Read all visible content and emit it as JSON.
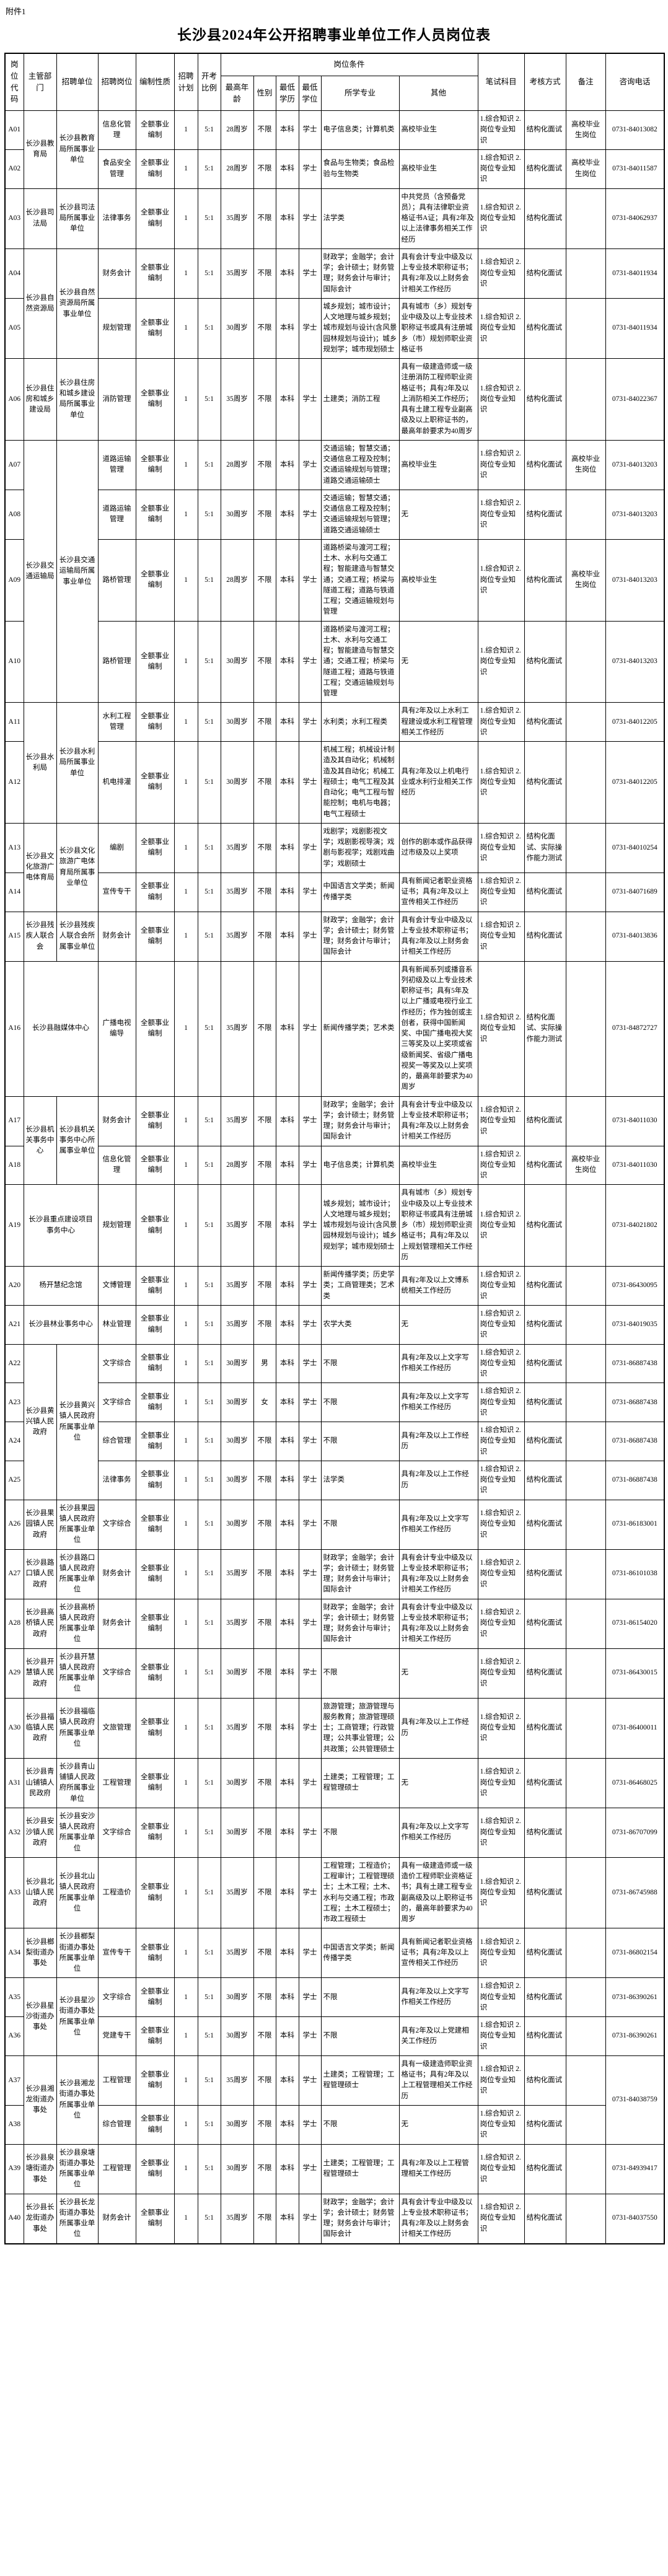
{
  "attachment_label": "附件1",
  "title": "长沙县2024年公开招聘事业单位工作人员岗位表",
  "header": {
    "code": "岗位代码",
    "dept": "主管部门",
    "unit": "招聘单位",
    "post": "招聘岗位",
    "nature": "编制性质",
    "plan": "招聘计划",
    "ratio": "开考比例",
    "conditions": "岗位条件",
    "age": "最高年龄",
    "gender": "性别",
    "edu": "最低学历",
    "degree": "最低学位",
    "major": "所学专业",
    "other": "其他",
    "exam": "笔试科目",
    "assess": "考核方式",
    "remark": "备注",
    "phone": "咨询电话"
  },
  "rows": [
    {
      "code": "A01",
      "org": {
        "dept": "长沙县教育局",
        "unit": "长沙县教育局所属事业单位",
        "rowspan": 2
      },
      "post": "信息化管理",
      "nature": "全额事业编制",
      "plan": "1",
      "ratio": "5:1",
      "age": "28周岁",
      "gender": "不限",
      "edu": "本科",
      "degree": "学士",
      "major": "电子信息类；计算机类",
      "other": "高校毕业生",
      "exam": "1.综合知识 2.岗位专业知识",
      "assess": "结构化面试",
      "remark": "高校毕业生岗位",
      "phone": "0731-84013082"
    },
    {
      "code": "A02",
      "org": null,
      "post": "食品安全管理",
      "nature": "全额事业编制",
      "plan": "1",
      "ratio": "5:1",
      "age": "28周岁",
      "gender": "不限",
      "edu": "本科",
      "degree": "学士",
      "major": "食品与生物类；食品检验与生物类",
      "other": "高校毕业生",
      "exam": "1.综合知识 2.岗位专业知识",
      "assess": "结构化面试",
      "remark": "高校毕业生岗位",
      "phone": "0731-84011587"
    },
    {
      "code": "A03",
      "org": {
        "dept": "长沙县司法局",
        "unit": "长沙县司法局所属事业单位",
        "rowspan": 1
      },
      "post": "法律事务",
      "nature": "全额事业编制",
      "plan": "1",
      "ratio": "5:1",
      "age": "35周岁",
      "gender": "不限",
      "edu": "本科",
      "degree": "学士",
      "major": "法学类",
      "other": "中共党员（含预备党员）；具有法律职业资格证书A证；具有2年及以上法律事务相关工作经历",
      "exam": "1.综合知识 2.岗位专业知识",
      "assess": "结构化面试",
      "remark": "",
      "phone": "0731-84062937"
    },
    {
      "code": "A04",
      "org": {
        "dept": "长沙县自然资源局",
        "unit": "长沙县自然资源局所属事业单位",
        "rowspan": 2
      },
      "post": "财务会计",
      "nature": "全额事业编制",
      "plan": "1",
      "ratio": "5:1",
      "age": "35周岁",
      "gender": "不限",
      "edu": "本科",
      "degree": "学士",
      "major": "财政学；金融学；会计学；会计硕士；财务管理；财务会计与审计；国际会计",
      "other": "具有会计专业中级及以上专业技术职称证书；具有2年及以上财务会计相关工作经历",
      "exam": "1.综合知识 2.岗位专业知识",
      "assess": "结构化面试",
      "remark": "",
      "phone": "0731-84011934"
    },
    {
      "code": "A05",
      "org": null,
      "post": "规划管理",
      "nature": "全额事业编制",
      "plan": "1",
      "ratio": "5:1",
      "age": "30周岁",
      "gender": "不限",
      "edu": "本科",
      "degree": "学士",
      "major": "城乡规划；城市设计；人文地理与城乡规划；城市规划与设计(含风景园林规划与设计)；城乡规划学；城市规划硕士",
      "other": "具有城市（乡）规划专业中级及以上专业技术职称证书或具有注册城乡（市）规划师职业资格证书",
      "exam": "1.综合知识 2.岗位专业知识",
      "assess": "结构化面试",
      "remark": "",
      "phone": "0731-84011934"
    },
    {
      "code": "A06",
      "org": {
        "dept": "长沙县住房和城乡建设局",
        "unit": "长沙县住房和城乡建设局所属事业单位",
        "rowspan": 1
      },
      "post": "消防管理",
      "nature": "全额事业编制",
      "plan": "1",
      "ratio": "5:1",
      "age": "35周岁",
      "gender": "不限",
      "edu": "本科",
      "degree": "学士",
      "major": "土建类；消防工程",
      "other": "具有一级建造师或一级注册消防工程师职业资格证书；具有2年及以上消防相关工作经历；具有土建工程专业副高级及以上职称证书的，最高年龄要求为40周岁",
      "exam": "1.综合知识 2.岗位专业知识",
      "assess": "结构化面试",
      "remark": "",
      "phone": "0731-84022367"
    },
    {
      "code": "A07",
      "org": {
        "dept": "长沙县交通运输局",
        "unit": "长沙县交通运输局所属事业单位",
        "rowspan": 4
      },
      "post": "道路运输管理",
      "nature": "全额事业编制",
      "plan": "1",
      "ratio": "5:1",
      "age": "28周岁",
      "gender": "不限",
      "edu": "本科",
      "degree": "学士",
      "major": "交通运输；智慧交通；交通信息工程及控制；交通运输规划与管理；道路交通运输硕士",
      "other": "高校毕业生",
      "exam": "1.综合知识 2.岗位专业知识",
      "assess": "结构化面试",
      "remark": "高校毕业生岗位",
      "phone": "0731-84013203"
    },
    {
      "code": "A08",
      "org": null,
      "post": "道路运输管理",
      "nature": "全额事业编制",
      "plan": "1",
      "ratio": "5:1",
      "age": "30周岁",
      "gender": "不限",
      "edu": "本科",
      "degree": "学士",
      "major": "交通运输；智慧交通；交通信息工程及控制；交通运输规划与管理；道路交通运输硕士",
      "other": "无",
      "exam": "1.综合知识 2.岗位专业知识",
      "assess": "结构化面试",
      "remark": "",
      "phone": "0731-84013203"
    },
    {
      "code": "A09",
      "org": null,
      "post": "路桥管理",
      "nature": "全额事业编制",
      "plan": "1",
      "ratio": "5:1",
      "age": "28周岁",
      "gender": "不限",
      "edu": "本科",
      "degree": "学士",
      "major": "道路桥梁与渡河工程；土木、水利与交通工程；智能建造与智慧交通；交通工程；桥梁与隧道工程；道路与铁道工程；交通运输规划与管理",
      "other": "高校毕业生",
      "exam": "1.综合知识 2.岗位专业知识",
      "assess": "结构化面试",
      "remark": "高校毕业生岗位",
      "phone": "0731-84013203"
    },
    {
      "code": "A10",
      "org": null,
      "post": "路桥管理",
      "nature": "全额事业编制",
      "plan": "1",
      "ratio": "5:1",
      "age": "30周岁",
      "gender": "不限",
      "edu": "本科",
      "degree": "学士",
      "major": "道路桥梁与渡河工程；土木、水利与交通工程；智能建造与智慧交通；交通工程；桥梁与隧道工程；道路与铁道工程；交通运输规划与管理",
      "other": "无",
      "exam": "1.综合知识 2.岗位专业知识",
      "assess": "结构化面试",
      "remark": "",
      "phone": "0731-84013203"
    },
    {
      "code": "A11",
      "org": {
        "dept": "长沙县水利局",
        "unit": "长沙县水利局所属事业单位",
        "rowspan": 2
      },
      "post": "水利工程管理",
      "nature": "全额事业编制",
      "plan": "1",
      "ratio": "5:1",
      "age": "30周岁",
      "gender": "不限",
      "edu": "本科",
      "degree": "学士",
      "major": "水利类；水利工程类",
      "other": "具有2年及以上水利工程建设或水利工程管理相关工作经历",
      "exam": "1.综合知识 2.岗位专业知识",
      "assess": "结构化面试",
      "remark": "",
      "phone": "0731-84012205"
    },
    {
      "code": "A12",
      "org": null,
      "post": "机电排灌",
      "nature": "全额事业编制",
      "plan": "1",
      "ratio": "5:1",
      "age": "30周岁",
      "gender": "不限",
      "edu": "本科",
      "degree": "学士",
      "major": "机械工程；机械设计制造及其自动化；机械制造及其自动化；机械工程硕士；电气工程及其自动化；电气工程与智能控制；电机与电器；电气工程硕士",
      "other": "具有2年及以上机电行业或水利行业相关工作经历",
      "exam": "1.综合知识 2.岗位专业知识",
      "assess": "结构化面试",
      "remark": "",
      "phone": "0731-84012205"
    },
    {
      "code": "A13",
      "org": {
        "dept": "长沙县文化旅游广电体育局",
        "unit": "长沙县文化旅游广电体育局所属事业单位",
        "rowspan": 2
      },
      "post": "编剧",
      "nature": "全额事业编制",
      "plan": "1",
      "ratio": "5:1",
      "age": "35周岁",
      "gender": "不限",
      "edu": "本科",
      "degree": "学士",
      "major": "戏剧学；戏剧影视文学；戏剧影视导演；戏剧与影视学；戏剧戏曲学；戏剧硕士",
      "other": "创作的剧本或作品获得过市级及以上奖项",
      "exam": "1.综合知识 2.岗位专业知识",
      "assess": "结构化面试、实际操作能力测试",
      "remark": "",
      "phone": "0731-84010254"
    },
    {
      "code": "A14",
      "org": null,
      "post": "宣传专干",
      "nature": "全额事业编制",
      "plan": "1",
      "ratio": "5:1",
      "age": "35周岁",
      "gender": "不限",
      "edu": "本科",
      "degree": "学士",
      "major": "中国语言文学类；新闻传播学类",
      "other": "具有新闻记者职业资格证书；具有2年及以上宣传相关工作经历",
      "exam": "1.综合知识 2.岗位专业知识",
      "assess": "结构化面试",
      "remark": "",
      "phone": "0731-84071689"
    },
    {
      "code": "A15",
      "org": {
        "dept": "长沙县残疾人联合会",
        "unit": "长沙县残疾人联合会所属事业单位",
        "rowspan": 1
      },
      "post": "财务会计",
      "nature": "全额事业编制",
      "plan": "1",
      "ratio": "5:1",
      "age": "35周岁",
      "gender": "不限",
      "edu": "本科",
      "degree": "学士",
      "major": "财政学；金融学；会计学；会计硕士；财务管理；财务会计与审计；国际会计",
      "other": "具有会计专业中级及以上专业技术职称证书；具有2年及以上财务会计相关工作经历",
      "exam": "1.综合知识 2.岗位专业知识",
      "assess": "结构化面试",
      "remark": "",
      "phone": "0731-84013836"
    },
    {
      "code": "A16",
      "org": {
        "merged": "长沙县融媒体中心",
        "rowspan": 1
      },
      "post": "广播电视编导",
      "nature": "全额事业编制",
      "plan": "1",
      "ratio": "5:1",
      "age": "35周岁",
      "gender": "不限",
      "edu": "本科",
      "degree": "学士",
      "major": "新闻传播学类；艺术类",
      "other": "具有新闻系列或播音系列初级及以上专业技术职称证书；具有5年及以上广播或电视行业工作经历；作为独创或主创者，获得中国新闻奖、中国广播电视大奖三等奖及以上奖项或省级新闻奖、省级广播电视奖一等奖及以上奖项的，最高年龄要求为40周岁",
      "exam": "1.综合知识 2.岗位专业知识",
      "assess": "结构化面试、实际操作能力测试",
      "remark": "",
      "phone": "0731-84872727"
    },
    {
      "code": "A17",
      "org": {
        "dept": "长沙县机关事务中心",
        "unit": "长沙县机关事务中心所属事业单位",
        "rowspan": 2
      },
      "post": "财务会计",
      "nature": "全额事业编制",
      "plan": "1",
      "ratio": "5:1",
      "age": "35周岁",
      "gender": "不限",
      "edu": "本科",
      "degree": "学士",
      "major": "财政学；金融学；会计学；会计硕士；财务管理；财务会计与审计；国际会计",
      "other": "具有会计专业中级及以上专业技术职称证书；具有2年及以上财务会计相关工作经历",
      "exam": "1.综合知识 2.岗位专业知识",
      "assess": "结构化面试",
      "remark": "",
      "phone": "0731-84011030"
    },
    {
      "code": "A18",
      "org": null,
      "post": "信息化管理",
      "nature": "全额事业编制",
      "plan": "1",
      "ratio": "5:1",
      "age": "28周岁",
      "gender": "不限",
      "edu": "本科",
      "degree": "学士",
      "major": "电子信息类；计算机类",
      "other": "高校毕业生",
      "exam": "1.综合知识 2.岗位专业知识",
      "assess": "结构化面试",
      "remark": "高校毕业生岗位",
      "phone": "0731-84011030"
    },
    {
      "code": "A19",
      "org": {
        "merged": "长沙县重点建设项目事务中心",
        "rowspan": 1
      },
      "post": "规划管理",
      "nature": "全额事业编制",
      "plan": "1",
      "ratio": "5:1",
      "age": "35周岁",
      "gender": "不限",
      "edu": "本科",
      "degree": "学士",
      "major": "城乡规划；城市设计；人文地理与城乡规划；城市规划与设计(含风景园林规划与设计)；城乡规划学；城市规划硕士",
      "other": "具有城市（乡）规划专业中级及以上专业技术职称证书或具有注册城乡（市）规划师职业资格证书；具有2年及以上规划管理相关工作经历",
      "exam": "1.综合知识 2.岗位专业知识",
      "assess": "结构化面试",
      "remark": "",
      "phone": "0731-84021802"
    },
    {
      "code": "A20",
      "org": {
        "merged": "杨开慧纪念馆",
        "rowspan": 1
      },
      "post": "文博管理",
      "nature": "全额事业编制",
      "plan": "1",
      "ratio": "5:1",
      "age": "35周岁",
      "gender": "不限",
      "edu": "本科",
      "degree": "学士",
      "major": "新闻传播学类；历史学类；工商管理类；艺术类",
      "other": "具有2年及以上文博系统相关工作经历",
      "exam": "1.综合知识 2.岗位专业知识",
      "assess": "结构化面试",
      "remark": "",
      "phone": "0731-86430095"
    },
    {
      "code": "A21",
      "org": {
        "merged": "长沙县林业事务中心",
        "rowspan": 1
      },
      "post": "林业管理",
      "nature": "全额事业编制",
      "plan": "1",
      "ratio": "5:1",
      "age": "35周岁",
      "gender": "不限",
      "edu": "本科",
      "degree": "学士",
      "major": "农学大类",
      "other": "无",
      "exam": "1.综合知识 2.岗位专业知识",
      "assess": "结构化面试",
      "remark": "",
      "phone": "0731-84019035"
    },
    {
      "code": "A22",
      "org": {
        "dept": "长沙县黄兴镇人民政府",
        "unit": "长沙县黄兴镇人民政府所属事业单位",
        "rowspan": 4
      },
      "post": "文字综合",
      "nature": "全额事业编制",
      "plan": "1",
      "ratio": "5:1",
      "age": "30周岁",
      "gender": "男",
      "edu": "本科",
      "degree": "学士",
      "major": "不限",
      "other": "具有2年及以上文字写作相关工作经历",
      "exam": "1.综合知识 2.岗位专业知识",
      "assess": "结构化面试",
      "remark": "",
      "phone": "0731-86887438"
    },
    {
      "code": "A23",
      "org": null,
      "post": "文字综合",
      "nature": "全额事业编制",
      "plan": "1",
      "ratio": "5:1",
      "age": "30周岁",
      "gender": "女",
      "edu": "本科",
      "degree": "学士",
      "major": "不限",
      "other": "具有2年及以上文字写作相关工作经历",
      "exam": "1.综合知识 2.岗位专业知识",
      "assess": "结构化面试",
      "remark": "",
      "phone": "0731-86887438"
    },
    {
      "code": "A24",
      "org": null,
      "post": "综合管理",
      "nature": "全额事业编制",
      "plan": "1",
      "ratio": "5:1",
      "age": "30周岁",
      "gender": "不限",
      "edu": "本科",
      "degree": "学士",
      "major": "不限",
      "other": "具有2年及以上工作经历",
      "exam": "1.综合知识 2.岗位专业知识",
      "assess": "结构化面试",
      "remark": "",
      "phone": "0731-86887438"
    },
    {
      "code": "A25",
      "org": null,
      "post": "法律事务",
      "nature": "全额事业编制",
      "plan": "1",
      "ratio": "5:1",
      "age": "30周岁",
      "gender": "不限",
      "edu": "本科",
      "degree": "学士",
      "major": "法学类",
      "other": "具有2年及以上工作经历",
      "exam": "1.综合知识 2.岗位专业知识",
      "assess": "结构化面试",
      "remark": "",
      "phone": "0731-86887438"
    },
    {
      "code": "A26",
      "org": {
        "dept": "长沙县果园镇人民政府",
        "unit": "长沙县果园镇人民政府所属事业单位",
        "rowspan": 1
      },
      "post": "文字综合",
      "nature": "全额事业编制",
      "plan": "1",
      "ratio": "5:1",
      "age": "30周岁",
      "gender": "不限",
      "edu": "本科",
      "degree": "学士",
      "major": "不限",
      "other": "具有2年及以上文字写作相关工作经历",
      "exam": "1.综合知识 2.岗位专业知识",
      "assess": "结构化面试",
      "remark": "",
      "phone": "0731-86183001"
    },
    {
      "code": "A27",
      "org": {
        "dept": "长沙县路口镇人民政府",
        "unit": "长沙县路口镇人民政府所属事业单位",
        "rowspan": 1
      },
      "post": "财务会计",
      "nature": "全额事业编制",
      "plan": "1",
      "ratio": "5:1",
      "age": "35周岁",
      "gender": "不限",
      "edu": "本科",
      "degree": "学士",
      "major": "财政学；金融学；会计学；会计硕士；财务管理；财务会计与审计；国际会计",
      "other": "具有会计专业中级及以上专业技术职称证书；具有2年及以上财务会计相关工作经历",
      "exam": "1.综合知识 2.岗位专业知识",
      "assess": "结构化面试",
      "remark": "",
      "phone": "0731-86101038"
    },
    {
      "code": "A28",
      "org": {
        "dept": "长沙县高桥镇人民政府",
        "unit": "长沙县高桥镇人民政府所属事业单位",
        "rowspan": 1
      },
      "post": "财务会计",
      "nature": "全额事业编制",
      "plan": "1",
      "ratio": "5:1",
      "age": "35周岁",
      "gender": "不限",
      "edu": "本科",
      "degree": "学士",
      "major": "财政学；金融学；会计学；会计硕士；财务管理；财务会计与审计；国际会计",
      "other": "具有会计专业中级及以上专业技术职称证书；具有2年及以上财务会计相关工作经历",
      "exam": "1.综合知识 2.岗位专业知识",
      "assess": "结构化面试",
      "remark": "",
      "phone": "0731-86154020"
    },
    {
      "code": "A29",
      "org": {
        "dept": "长沙县开慧镇人民政府",
        "unit": "长沙县开慧镇人民政府所属事业单位",
        "rowspan": 1
      },
      "post": "文字综合",
      "nature": "全额事业编制",
      "plan": "1",
      "ratio": "5:1",
      "age": "30周岁",
      "gender": "不限",
      "edu": "本科",
      "degree": "学士",
      "major": "不限",
      "other": "无",
      "exam": "1.综合知识 2.岗位专业知识",
      "assess": "结构化面试",
      "remark": "",
      "phone": "0731-86430015"
    },
    {
      "code": "A30",
      "org": {
        "dept": "长沙县福临镇人民政府",
        "unit": "长沙县福临镇人民政府所属事业单位",
        "rowspan": 1
      },
      "post": "文旅管理",
      "nature": "全额事业编制",
      "plan": "1",
      "ratio": "5:1",
      "age": "35周岁",
      "gender": "不限",
      "edu": "本科",
      "degree": "学士",
      "major": "旅游管理；旅游管理与服务教育；旅游管理硕士；工商管理；行政管理；公共事业管理；公共政策；公共管理硕士",
      "other": "具有2年及以上工作经历",
      "exam": "1.综合知识 2.岗位专业知识",
      "assess": "结构化面试",
      "remark": "",
      "phone": "0731-86400011"
    },
    {
      "code": "A31",
      "org": {
        "dept": "长沙县青山铺镇人民政府",
        "unit": "长沙县青山铺镇人民政府所属事业单位",
        "rowspan": 1
      },
      "post": "工程管理",
      "nature": "全额事业编制",
      "plan": "1",
      "ratio": "5:1",
      "age": "30周岁",
      "gender": "不限",
      "edu": "本科",
      "degree": "学士",
      "major": "土建类；工程管理；工程管理硕士",
      "other": "无",
      "exam": "1.综合知识 2.岗位专业知识",
      "assess": "结构化面试",
      "remark": "",
      "phone": "0731-86468025"
    },
    {
      "code": "A32",
      "org": {
        "dept": "长沙县安沙镇人民政府",
        "unit": "长沙县安沙镇人民政府所属事业单位",
        "rowspan": 1
      },
      "post": "文字综合",
      "nature": "全额事业编制",
      "plan": "1",
      "ratio": "5:1",
      "age": "30周岁",
      "gender": "不限",
      "edu": "本科",
      "degree": "学士",
      "major": "不限",
      "other": "具有2年及以上文字写作相关工作经历",
      "exam": "1.综合知识 2.岗位专业知识",
      "assess": "结构化面试",
      "remark": "",
      "phone": "0731-86707099"
    },
    {
      "code": "A33",
      "org": {
        "dept": "长沙县北山镇人民政府",
        "unit": "长沙县北山镇人民政府所属事业单位",
        "rowspan": 1
      },
      "post": "工程造价",
      "nature": "全额事业编制",
      "plan": "1",
      "ratio": "5:1",
      "age": "35周岁",
      "gender": "不限",
      "edu": "本科",
      "degree": "学士",
      "major": "工程管理；工程造价；工程审计；工程管理硕士；土木工程；土木、水利与交通工程；市政工程；土木工程硕士；市政工程硕士",
      "other": "具有一级建造师或一级造价工程师职业资格证书；具有土建工程专业副高级及以上职称证书的，最高年龄要求为40周岁",
      "exam": "1.综合知识 2.岗位专业知识",
      "assess": "结构化面试",
      "remark": "",
      "phone": "0731-86745988"
    },
    {
      "code": "A34",
      "org": {
        "dept": "长沙县榔梨街道办事处",
        "unit": "长沙县榔梨街道办事处所属事业单位",
        "rowspan": 1
      },
      "post": "宣传专干",
      "nature": "全额事业编制",
      "plan": "1",
      "ratio": "5:1",
      "age": "35周岁",
      "gender": "不限",
      "edu": "本科",
      "degree": "学士",
      "major": "中国语言文学类；新闻传播学类",
      "other": "具有新闻记者职业资格证书；具有2年及以上宣传相关工作经历",
      "exam": "1.综合知识 2.岗位专业知识",
      "assess": "结构化面试",
      "remark": "",
      "phone": "0731-86802154"
    },
    {
      "code": "A35",
      "org": {
        "dept": "长沙县星沙街道办事处",
        "unit": "长沙县星沙街道办事处所属事业单位",
        "rowspan": 2
      },
      "post": "文字综合",
      "nature": "全额事业编制",
      "plan": "1",
      "ratio": "5:1",
      "age": "30周岁",
      "gender": "不限",
      "edu": "本科",
      "degree": "学士",
      "major": "不限",
      "other": "具有2年及以上文字写作相关工作经历",
      "exam": "1.综合知识 2.岗位专业知识",
      "assess": "结构化面试",
      "remark": "",
      "phone": "0731-86390261"
    },
    {
      "code": "A36",
      "org": null,
      "post": "党建专干",
      "nature": "全额事业编制",
      "plan": "1",
      "ratio": "5:1",
      "age": "30周岁",
      "gender": "不限",
      "edu": "本科",
      "degree": "学士",
      "major": "不限",
      "other": "具有2年及以上党建相关工作经历",
      "exam": "1.综合知识 2.岗位专业知识",
      "assess": "结构化面试",
      "remark": "",
      "phone": "0731-86390261"
    },
    {
      "code": "A37",
      "org": {
        "dept": "长沙县湘龙街道办事处",
        "unit": "长沙县湘龙街道办事处所属事业单位",
        "rowspan": 2
      },
      "post": "工程管理",
      "nature": "全额事业编制",
      "plan": "1",
      "ratio": "5:1",
      "age": "35周岁",
      "gender": "不限",
      "edu": "本科",
      "degree": "学士",
      "major": "土建类；工程管理；工程管理硕士",
      "other": "具有一级建造师职业资格证书；具有2年及以上工程管理相关工作经历",
      "exam": "1.综合知识 2.岗位专业知识",
      "assess": "结构化面试",
      "remark": "",
      "phone": {
        "value": "0731-84038759",
        "rowspan": 2
      }
    },
    {
      "code": "A38",
      "org": null,
      "post": "综合管理",
      "nature": "全额事业编制",
      "plan": "1",
      "ratio": "5:1",
      "age": "30周岁",
      "gender": "不限",
      "edu": "本科",
      "degree": "学士",
      "major": "不限",
      "other": "无",
      "exam": "1.综合知识 2.岗位专业知识",
      "assess": "结构化面试",
      "remark": "",
      "phone": null
    },
    {
      "code": "A39",
      "org": {
        "dept": "长沙县泉塘街道办事处",
        "unit": "长沙县泉塘街道办事处所属事业单位",
        "rowspan": 1
      },
      "post": "工程管理",
      "nature": "全额事业编制",
      "plan": "1",
      "ratio": "5:1",
      "age": "30周岁",
      "gender": "不限",
      "edu": "本科",
      "degree": "学士",
      "major": "土建类；工程管理；工程管理硕士",
      "other": "具有2年及以上工程管理相关工作经历",
      "exam": "1.综合知识 2.岗位专业知识",
      "assess": "结构化面试",
      "remark": "",
      "phone": "0731-84939417"
    },
    {
      "code": "A40",
      "org": {
        "dept": "长沙县长龙街道办事处",
        "unit": "长沙县长龙街道办事处所属事业单位",
        "rowspan": 1
      },
      "post": "财务会计",
      "nature": "全额事业编制",
      "plan": "1",
      "ratio": "5:1",
      "age": "35周岁",
      "gender": "不限",
      "edu": "本科",
      "degree": "学士",
      "major": "财政学；金融学；会计学；会计硕士；财务管理；财务会计与审计；国际会计",
      "other": "具有会计专业中级及以上专业技术职称证书；具有2年及以上财务会计相关工作经历",
      "exam": "1.综合知识 2.岗位专业知识",
      "assess": "结构化面试",
      "remark": "",
      "phone": "0731-84037550"
    }
  ]
}
